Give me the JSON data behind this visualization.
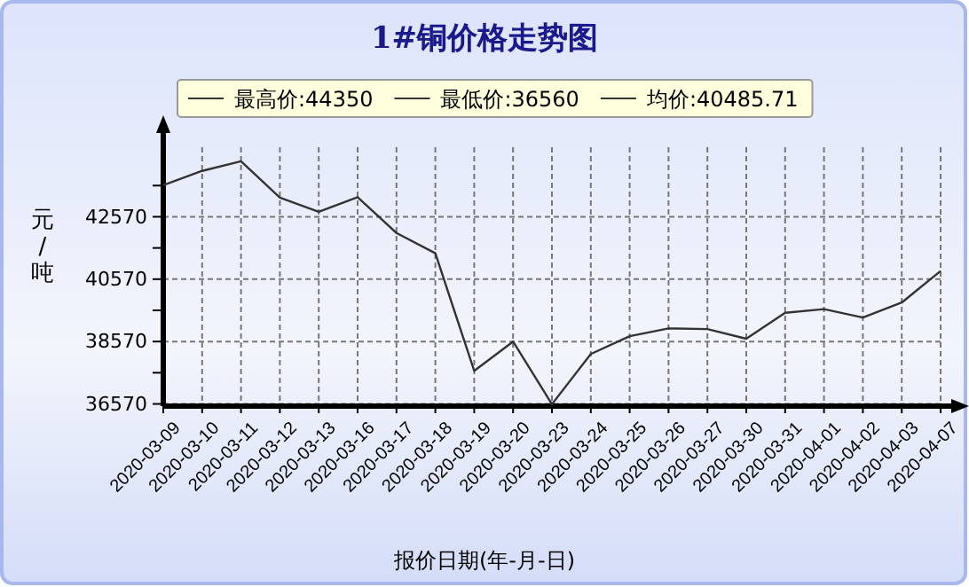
{
  "chart_data": {
    "type": "line",
    "title": "1#铜价格走势图",
    "xlabel": "报价日期(年-月-日)",
    "ylabel": "元/吨",
    "annotations": [
      "最高价:44350",
      "最低价:36560",
      "均价:40485.71"
    ],
    "categories": [
      "2020-03-09",
      "2020-03-10",
      "2020-03-11",
      "2020-03-12",
      "2020-03-13",
      "2020-03-16",
      "2020-03-17",
      "2020-03-18",
      "2020-03-19",
      "2020-03-20",
      "2020-03-23",
      "2020-03-24",
      "2020-03-25",
      "2020-03-26",
      "2020-03-27",
      "2020-03-30",
      "2020-03-31",
      "2020-04-01",
      "2020-04-02",
      "2020-04-03",
      "2020-04-07"
    ],
    "series": [
      {
        "color": "#333333",
        "values": [
          43580,
          44040,
          44350,
          43180,
          42730,
          43200,
          42050,
          41400,
          37630,
          38570,
          36560,
          38170,
          38740,
          38990,
          38970,
          38660,
          39490,
          39610,
          39340,
          39820,
          40830
        ]
      }
    ],
    "ylim": [
      36500,
      44800
    ],
    "yticks": [
      36570,
      {
        "value": 37570,
        "label": null
      },
      38570,
      {
        "value": 39570,
        "label": null
      },
      40570,
      {
        "value": 41570,
        "label": null
      },
      42570,
      {
        "value": 43570,
        "label": null
      }
    ],
    "grid": true,
    "marker": "none",
    "line_style": "solid"
  }
}
